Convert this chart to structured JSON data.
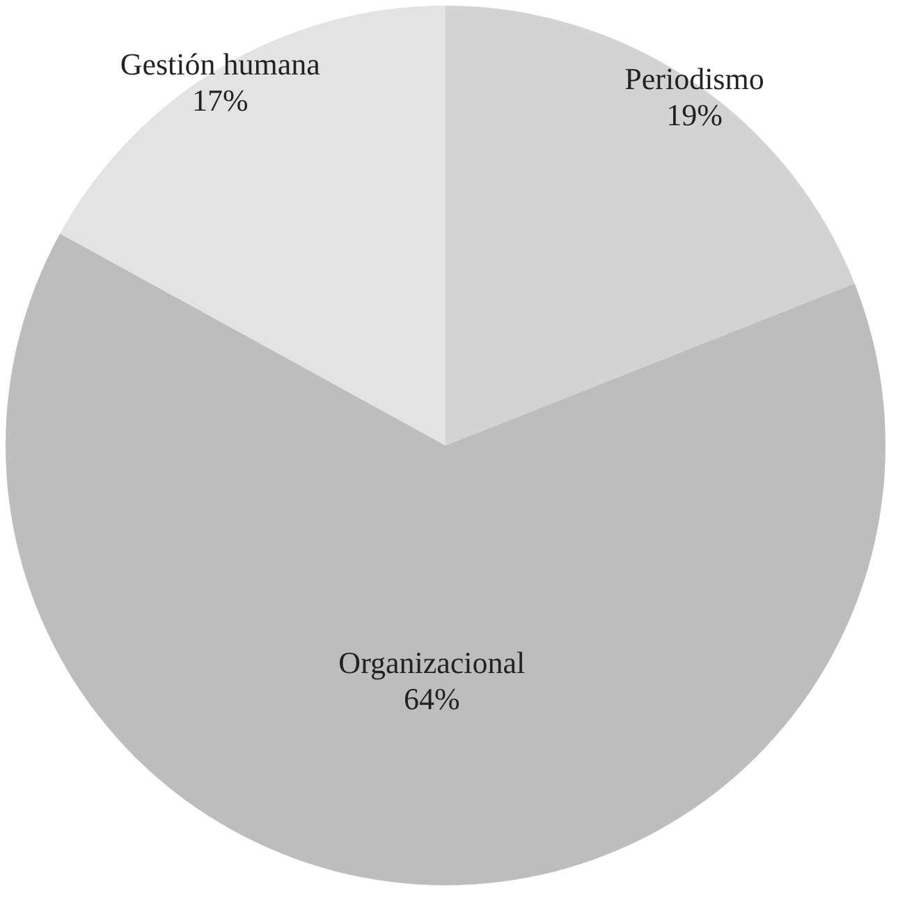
{
  "chart_data": {
    "type": "pie",
    "categories": [
      "Periodismo",
      "Organizacional",
      "Gestión humana"
    ],
    "values": [
      19,
      64,
      17
    ],
    "colors": [
      "#d3d3d3",
      "#bdbdbd",
      "#e3e3e3"
    ],
    "value_labels": [
      "19%",
      "64%",
      "17%"
    ]
  }
}
